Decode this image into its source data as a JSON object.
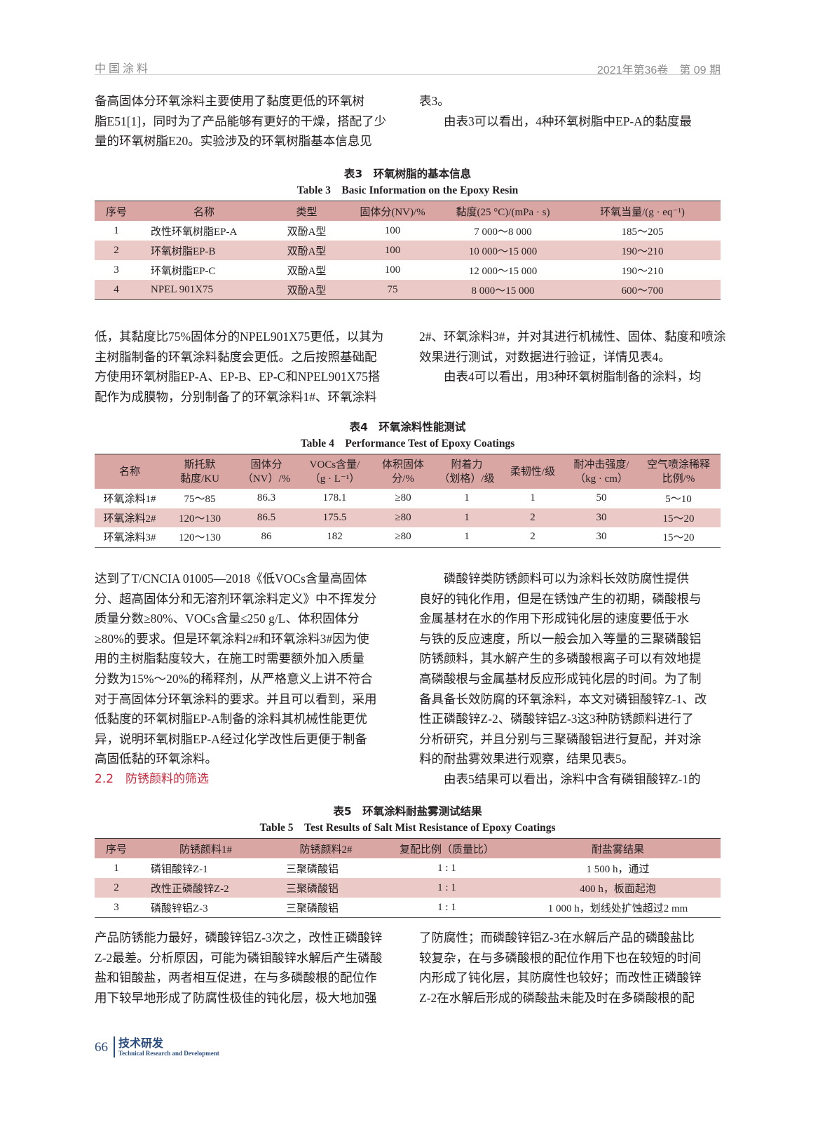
{
  "header": {
    "journal": "中国涂料",
    "issue": "2021年第36卷　第 09 期"
  },
  "block1": {
    "left": [
      "备高固体分环氧涂料主要使用了黏度更低的环氧树",
      "脂E51[1]，同时为了产品能够有更好的干燥，搭配了少",
      "量的环氧树脂E20。实验涉及的环氧树脂基本信息见"
    ],
    "right": [
      "表3。",
      "由表3可以看出，4种环氧树脂中EP-A的黏度最"
    ]
  },
  "table3": {
    "title_cn": "表3　环氧树脂的基本信息",
    "title_en": "Table 3　Basic Information on the Epoxy Resin",
    "headers": [
      "序号",
      "名称",
      "类型",
      "固体分(NV)/%",
      "黏度(25 °C)/(mPa · s)",
      "环氧当量/(g · eq⁻¹)"
    ],
    "rows": [
      [
        "1",
        "改性环氧树脂EP-A",
        "双酚A型",
        "100",
        "7 000～8 000",
        "185～205"
      ],
      [
        "2",
        "环氧树脂EP-B",
        "双酚A型",
        "100",
        "10 000～15 000",
        "190～210"
      ],
      [
        "3",
        "环氧树脂EP-C",
        "双酚A型",
        "100",
        "12 000～15 000",
        "190～210"
      ],
      [
        "4",
        "NPEL 901X75",
        "双酚A型",
        "75",
        "8 000～15 000",
        "600～700"
      ]
    ]
  },
  "block2": {
    "left": [
      "低，其黏度比75%固体分的NPEL901X75更低，以其为",
      "主树脂制备的环氧涂料黏度会更低。之后按照基础配",
      "方使用环氧树脂EP-A、EP-B、EP-C和NPEL901X75搭",
      "配作为成膜物，分别制备了的环氧涂料1#、环氧涂料"
    ],
    "right": [
      "2#、环氧涂料3#，并对其进行机械性、固体、黏度和喷涂",
      "效果进行测试，对数据进行验证，详情见表4。",
      "由表4可以看出，用3种环氧树脂制备的涂料，均"
    ]
  },
  "table4": {
    "title_cn": "表4　环氧涂料性能测试",
    "title_en": "Table 4　Performance Test of Epoxy Coatings",
    "headers": [
      [
        "名称",
        ""
      ],
      [
        "斯托默",
        "黏度/KU"
      ],
      [
        "固体分",
        "（NV）/%"
      ],
      [
        "VOCs含量/",
        "（g · L⁻¹）"
      ],
      [
        "体积固体",
        "分/%"
      ],
      [
        "附着力",
        "（划格）/级"
      ],
      [
        "柔韧性/级",
        ""
      ],
      [
        "耐冲击强度/",
        "（kg · cm）"
      ],
      [
        "空气喷涂稀释",
        "比例/%"
      ]
    ],
    "rows": [
      [
        "环氧涂料1#",
        "75～85",
        "86.3",
        "178.1",
        "≥80",
        "1",
        "1",
        "50",
        "5～10"
      ],
      [
        "环氧涂料2#",
        "120～130",
        "86.5",
        "175.5",
        "≥80",
        "1",
        "2",
        "30",
        "15～20"
      ],
      [
        "环氧涂料3#",
        "120～130",
        "86",
        "182",
        "≥80",
        "1",
        "2",
        "30",
        "15～20"
      ]
    ]
  },
  "block3": {
    "left": [
      "达到了T/CNCIA 01005—2018《低VOCs含量高固体",
      "分、超高固体分和无溶剂环氧涂料定义》中不挥发分",
      "质量分数≥80%、VOCs含量≤250 g/L、体积固体分",
      "≥80%的要求。但是环氧涂料2#和环氧涂料3#因为使",
      "用的主树脂黏度较大，在施工时需要额外加入质量",
      "分数为15%～20%的稀释剂，从严格意义上讲不符合",
      "对于高固体分环氧涂料的要求。并且可以看到，采用",
      "低黏度的环氧树脂EP-A制备的涂料其机械性能更优",
      "异，说明环氧树脂EP-A经过化学改性后更便于制备",
      "高固低黏的环氧涂料。"
    ],
    "section": "2.2　防锈颜料的筛选",
    "right": [
      "磷酸锌类防锈颜料可以为涂料长效防腐性提供",
      "良好的钝化作用，但是在锈蚀产生的初期，磷酸根与",
      "金属基材在水的作用下形成钝化层的速度要低于水",
      "与铁的反应速度，所以一般会加入等量的三聚磷酸铝",
      "防锈颜料，其水解产生的多磷酸根离子可以有效地提",
      "高磷酸根与金属基材反应形成钝化层的时间。为了制",
      "备具备长效防腐的环氧涂料，本文对磷钼酸锌Z-1、改",
      "性正磷酸锌Z-2、磷酸锌铝Z-3这3种防锈颜料进行了",
      "分析研究，并且分别与三聚磷酸铝进行复配，并对涂",
      "料的耐盐雾效果进行观察，结果见表5。",
      "由表5结果可以看出，涂料中含有磷钼酸锌Z-1的"
    ]
  },
  "table5": {
    "title_cn": "表5　环氧涂料耐盐雾测试结果",
    "title_en": "Table 5　Test Results of Salt Mist Resistance of Epoxy Coatings",
    "headers": [
      "序号",
      "防锈颜料1#",
      "防锈颜料2#",
      "复配比例（质量比）",
      "耐盐雾结果"
    ],
    "rows": [
      [
        "1",
        "磷钼酸锌Z-1",
        "三聚磷酸铝",
        "1 : 1",
        "1 500 h，通过"
      ],
      [
        "2",
        "改性正磷酸锌Z-2",
        "三聚磷酸铝",
        "1 : 1",
        "400 h，板面起泡"
      ],
      [
        "3",
        "磷酸锌铝Z-3",
        "三聚磷酸铝",
        "1 : 1",
        "1 000 h，划线处扩蚀超过2 mm"
      ]
    ]
  },
  "block4": {
    "left": [
      "产品防锈能力最好，磷酸锌铝Z-3次之，改性正磷酸锌",
      "Z-2最差。分析原因，可能为磷钼酸锌水解后产生磷酸",
      "盐和钼酸盐，两者相互促进，在与多磷酸根的配位作",
      "用下较早地形成了防腐性极佳的钝化层，极大地加强"
    ],
    "right": [
      "了防腐性；而磷酸锌铝Z-3在水解后产品的磷酸盐比",
      "较复杂，在与多磷酸根的配位作用下也在较短的时间",
      "内形成了钝化层，其防腐性也较好；而改性正磷酸锌",
      "Z-2在水解后形成的磷酸盐未能及时在多磷酸根的配"
    ]
  },
  "footer": {
    "page": "66",
    "section_cn": "技术研发",
    "section_en": "Technical Research and Development"
  },
  "colors": {
    "table_header": "#d9a6a4",
    "table_alt_row": "#ebc9c7",
    "section_heading": "#c8283c",
    "footer": "#2b4c7e"
  }
}
